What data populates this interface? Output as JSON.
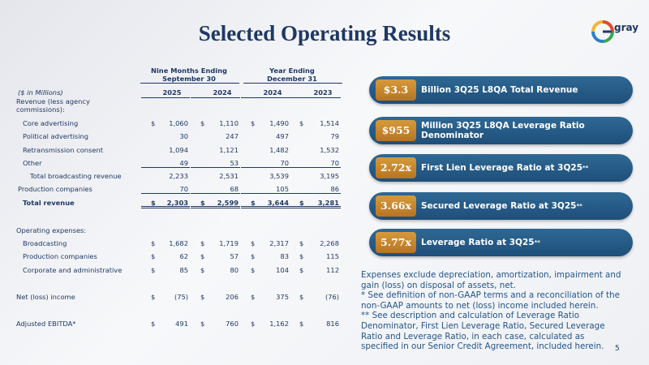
{
  "header": {
    "title": "Selected Operating Results",
    "logo": "gray"
  },
  "table": {
    "groups": [
      [
        "Nine Months Ending",
        "September 30"
      ],
      [
        "Year Ending",
        "December 31"
      ]
    ],
    "units": "($ in Millions)",
    "columns": [
      "2025",
      "2024",
      "2024",
      "2023"
    ],
    "rows": [
      {
        "label": "Revenue (less agency commissions):"
      },
      {
        "label": "Core advertising",
        "currency": "$",
        "values": [
          "1,060",
          "1,110",
          "1,490",
          "1,514"
        ]
      },
      {
        "label": "Political advertising",
        "values": [
          "30",
          "247",
          "497",
          "79"
        ]
      },
      {
        "label": "Retransmission consent",
        "values": [
          "1,094",
          "1,121",
          "1,482",
          "1,532"
        ]
      },
      {
        "label": "Other",
        "values": [
          "49",
          "53",
          "70",
          "70"
        ]
      },
      {
        "label": "Total broadcasting revenue",
        "values": [
          "2,233",
          "2,531",
          "3,539",
          "3,195"
        ]
      },
      {
        "label": "Production companies",
        "values": [
          "70",
          "68",
          "105",
          "86"
        ]
      },
      {
        "label": "Total revenue",
        "currency": "$",
        "values": [
          "2,303",
          "2,599",
          "3,644",
          "3,281"
        ]
      },
      {
        "label": "Operating expenses:"
      },
      {
        "label": "Broadcasting",
        "currency": "$",
        "values": [
          "1,682",
          "1,719",
          "2,317",
          "2,268"
        ]
      },
      {
        "label": "Production companies",
        "currency": "$",
        "values": [
          "62",
          "57",
          "83",
          "115"
        ]
      },
      {
        "label": "Corporate and administrative",
        "currency": "$",
        "values": [
          "85",
          "80",
          "104",
          "112"
        ]
      },
      {
        "label": "Net (loss) income",
        "currency": "$",
        "values": [
          "(75)",
          "206",
          "375",
          "(76)"
        ]
      },
      {
        "label": "Adjusted EBITDA*",
        "currency": "$",
        "values": [
          "491",
          "760",
          "1,162",
          "816"
        ]
      }
    ]
  },
  "highlights": [
    {
      "value": "$3.3",
      "label": "Billion 3Q25 L8QA Total Revenue"
    },
    {
      "value": "$955",
      "label": "Million 3Q25 L8QA Leverage Ratio Denominator"
    },
    {
      "value": "2.72x",
      "label": "First Lien Leverage Ratio at 3Q25",
      "note": "**"
    },
    {
      "value": "3.66x",
      "label": "Secured Leverage Ratio at 3Q25",
      "note": "**"
    },
    {
      "value": "5.77x",
      "label": "Leverage Ratio at 3Q25",
      "note": "**"
    }
  ],
  "notes": [
    "Expenses exclude depreciation, amortization, impairment and gain (loss) on disposal of assets, net.",
    "* See definition of non-GAAP terms and a reconciliation of the non-GAAP amounts to net (loss) income included herein.",
    "** See description and calculation of Leverage Ratio Denominator, First Lien Leverage Ratio, Secured Leverage Ratio and Leverage Ratio, in each case, calculated as specified in our Senior Credit Agreement, included herein."
  ],
  "page": "5"
}
